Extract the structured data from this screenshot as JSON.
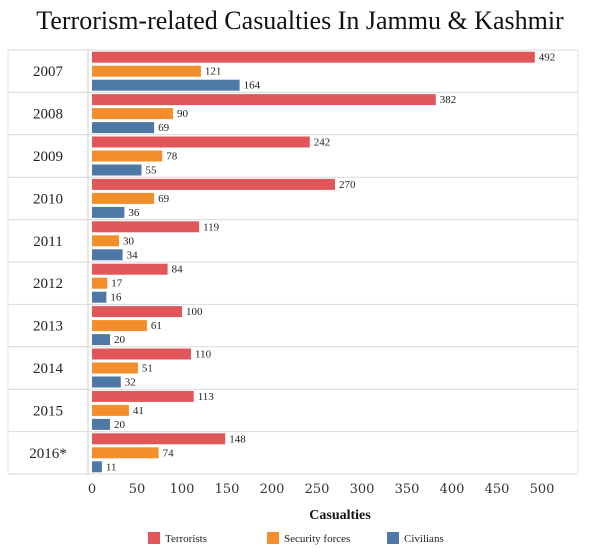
{
  "chart_data": {
    "type": "bar",
    "orientation": "horizontal",
    "title": "Terrorism-related Casualties In Jammu & Kashmir",
    "xlabel": "Casualties",
    "ylabel": "",
    "categories": [
      "2007",
      "2008",
      "2009",
      "2010",
      "2011",
      "2012",
      "2013",
      "2014",
      "2015",
      "2016*"
    ],
    "series": [
      {
        "name": "Terrorists",
        "color": "#e15759",
        "values": [
          492,
          382,
          242,
          270,
          119,
          84,
          100,
          110,
          113,
          148
        ]
      },
      {
        "name": "Security forces",
        "color": "#f28e2b",
        "values": [
          121,
          90,
          78,
          69,
          30,
          17,
          61,
          51,
          41,
          74
        ]
      },
      {
        "name": "Civilians",
        "color": "#4e79a7",
        "values": [
          164,
          69,
          55,
          36,
          34,
          16,
          20,
          32,
          20,
          11
        ]
      }
    ],
    "xlim": [
      0,
      500
    ],
    "xticks": [
      0,
      50,
      100,
      150,
      200,
      250,
      300,
      350,
      400,
      450,
      500
    ],
    "legend_position": "bottom",
    "grid": true
  }
}
